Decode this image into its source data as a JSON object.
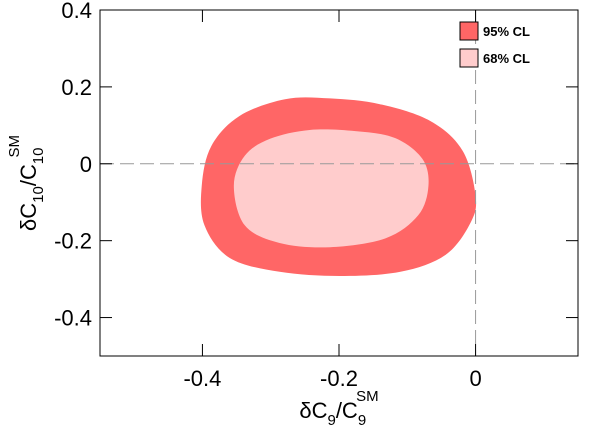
{
  "chart_data": {
    "type": "contour",
    "x_label": [
      {
        "text": "δC",
        "shift": "base"
      },
      {
        "text": "9",
        "shift": "sub"
      },
      {
        "text": "/C",
        "shift": "base"
      },
      {
        "text": "9",
        "shift": "sub"
      },
      {
        "text": "SM",
        "shift": "super"
      }
    ],
    "y_label": [
      {
        "text": "δC",
        "shift": "base"
      },
      {
        "text": "10",
        "shift": "sub"
      },
      {
        "text": "/C",
        "shift": "base"
      },
      {
        "text": "10",
        "shift": "sub"
      },
      {
        "text": "SM",
        "shift": "super"
      }
    ],
    "xlim": [
      -0.55,
      0.15
    ],
    "ylim": [
      -0.5,
      0.4
    ],
    "xticks": [
      -0.4,
      -0.2,
      0
    ],
    "yticks": [
      -0.4,
      -0.2,
      0,
      0.2,
      0.4
    ],
    "reference_lines": {
      "x": 0,
      "y": 0
    },
    "legend": "upper right",
    "series": [
      {
        "name": "95% CL",
        "color": "#ff6666",
        "x": [
          -0.401,
          -0.387,
          -0.346,
          -0.279,
          -0.213,
          -0.14,
          -0.066,
          -0.019,
          0.0,
          -0.007,
          -0.044,
          -0.11,
          -0.199,
          -0.287,
          -0.36,
          -0.397
        ],
        "y": [
          -0.057,
          0.046,
          0.124,
          0.168,
          0.17,
          0.155,
          0.111,
          0.034,
          -0.083,
          -0.152,
          -0.237,
          -0.281,
          -0.292,
          -0.281,
          -0.245,
          -0.16
        ]
      },
      {
        "name": "68% CL",
        "color": "#ffcccc",
        "x": [
          -0.354,
          -0.338,
          -0.301,
          -0.243,
          -0.176,
          -0.118,
          -0.078,
          -0.069,
          -0.084,
          -0.132,
          -0.213,
          -0.287,
          -0.338
        ],
        "y": [
          -0.057,
          0.021,
          0.065,
          0.088,
          0.085,
          0.067,
          0.013,
          -0.057,
          -0.134,
          -0.194,
          -0.217,
          -0.206,
          -0.16
        ]
      }
    ]
  }
}
